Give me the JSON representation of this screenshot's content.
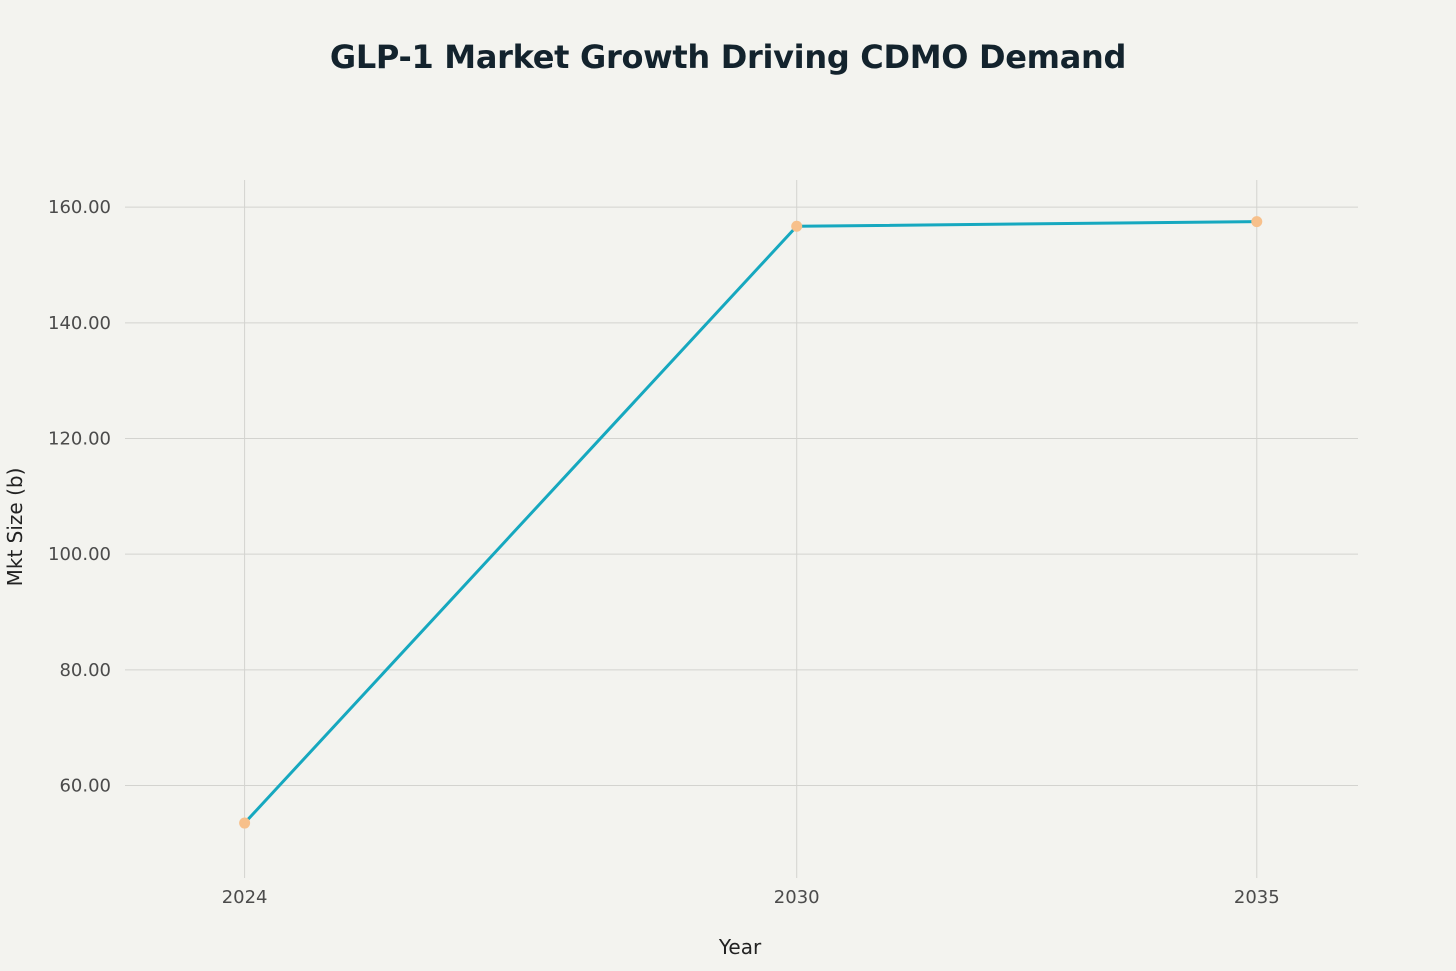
{
  "chart_data": {
    "type": "line",
    "title": "GLP-1 Market Growth Driving CDMO Demand",
    "xlabel": "Year",
    "ylabel": "Mkt Size (b)",
    "x": [
      "2024",
      "2030",
      "2035"
    ],
    "series": [
      {
        "values": [
          53.5,
          156.7,
          157.5
        ]
      }
    ],
    "yticks": [
      "60.00",
      "80.00",
      "100.00",
      "120.00",
      "140.00",
      "160.00"
    ],
    "ytick_values": [
      60,
      80,
      100,
      120,
      140,
      160
    ],
    "ylim": [
      44,
      164.7
    ],
    "xlim": [
      2022.7,
      2036.1
    ],
    "grid": true,
    "line_color": "#16a8bf",
    "marker_color": "#f7c08b",
    "background": "#f3f3ef"
  }
}
